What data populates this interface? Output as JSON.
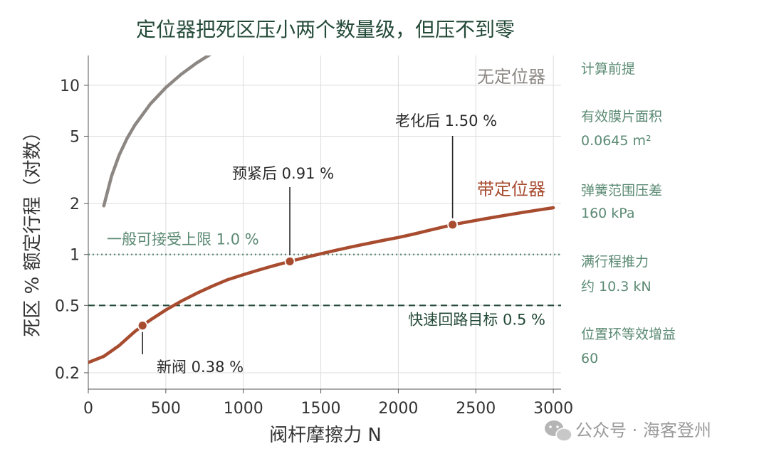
{
  "chart_data": {
    "type": "line",
    "title": "定位器把死区压小两个数量级，但压不到零",
    "xlabel": "阀杆摩擦力   N",
    "ylabel": "死区  % 额定行程（对数）",
    "xlim": [
      0,
      3050
    ],
    "ylim": [
      0.16,
      15
    ],
    "yscale": "log",
    "grid": true,
    "x_ticks": [
      0,
      500,
      1000,
      1500,
      2000,
      2500,
      3000
    ],
    "x_tick_labels": [
      "0",
      "500",
      "1000",
      "1500",
      "2000",
      "2500",
      "3000"
    ],
    "y_ticks": [
      0.2,
      0.5,
      1,
      2,
      5,
      10
    ],
    "y_tick_labels": [
      "0.2",
      "0.5",
      "1",
      "2",
      "5",
      "10"
    ],
    "series": [
      {
        "name": "无定位器",
        "color": "#8c8783",
        "x": [
          100,
          150,
          200,
          250,
          300,
          400,
          500,
          600,
          700,
          800,
          900
        ],
        "y": [
          1.94,
          2.91,
          3.88,
          4.85,
          5.81,
          7.75,
          9.69,
          11.63,
          13.57,
          15.5,
          17.44
        ]
      },
      {
        "name": "带定位器",
        "color": "#a84c30",
        "x": [
          0,
          100,
          200,
          300,
          350,
          400,
          500,
          600,
          700,
          800,
          900,
          1000,
          1100,
          1200,
          1300,
          1400,
          1500,
          1600,
          1700,
          1800,
          1900,
          2000,
          2100,
          2200,
          2300,
          2350,
          2400,
          2500,
          2600,
          2700,
          2800,
          2900,
          3000
        ],
        "y": [
          0.23,
          0.25,
          0.29,
          0.35,
          0.38,
          0.41,
          0.47,
          0.53,
          0.59,
          0.65,
          0.71,
          0.76,
          0.81,
          0.86,
          0.91,
          0.96,
          1.01,
          1.06,
          1.11,
          1.16,
          1.21,
          1.26,
          1.32,
          1.39,
          1.46,
          1.5,
          1.53,
          1.59,
          1.65,
          1.71,
          1.77,
          1.83,
          1.89
        ]
      }
    ],
    "points": [
      {
        "label": "新阀  0.38 %",
        "x": 350,
        "y": 0.38
      },
      {
        "label": "预紧后  0.91 %",
        "x": 1300,
        "y": 0.91
      },
      {
        "label": "老化后  1.50 %",
        "x": 2350,
        "y": 1.5
      }
    ],
    "reference_lines": [
      {
        "label": "一般可接受上限 1.0 %",
        "y": 1.0,
        "style": "dotted",
        "color": "#5b8a73"
      },
      {
        "label": "快速回路目标 0.5 %",
        "y": 0.5,
        "style": "dashed",
        "color": "#244a38"
      }
    ],
    "series_labels": {
      "no_positioner": "无定位器",
      "with_positioner": "带定位器"
    },
    "side_panel": [
      {
        "heading": "计算前提"
      },
      {
        "heading": "有效膜片面积",
        "value": "0.0645 m²"
      },
      {
        "heading": "弹簧范围压差",
        "value": "160 kPa"
      },
      {
        "heading": "满行程推力",
        "value": "约 10.3 kN"
      },
      {
        "heading": "位置环等效增益",
        "value": "60"
      }
    ],
    "watermark": "公众号 · 海客登州"
  }
}
